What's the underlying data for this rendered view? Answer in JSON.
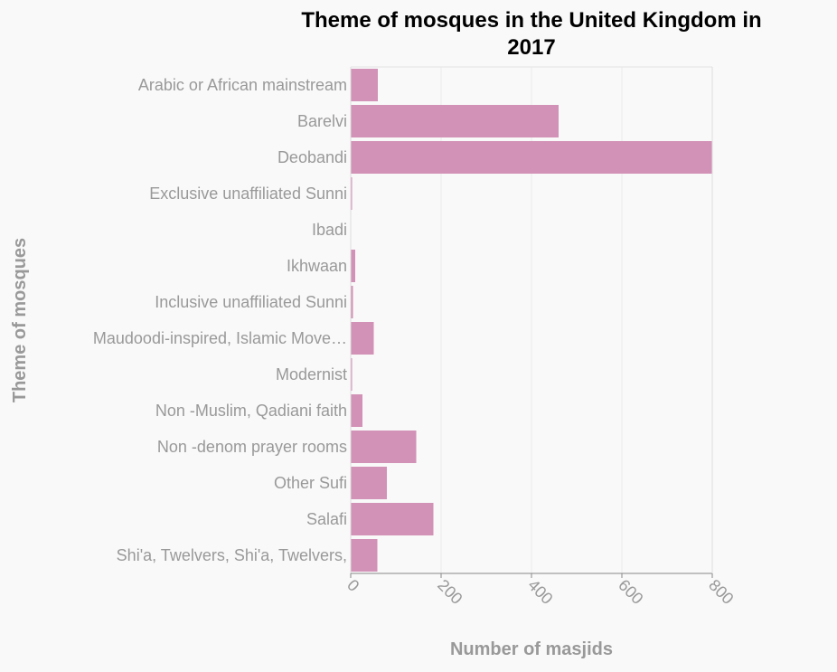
{
  "chart_data": {
    "type": "bar",
    "orientation": "horizontal",
    "title": "Theme of mosques in the United Kingdom in 2017",
    "xlabel": "Number of masjids",
    "ylabel": "Theme of mosques",
    "xlim": [
      0,
      800
    ],
    "xticks": [
      "0",
      "200",
      "400",
      "600",
      "800"
    ],
    "grid": "vertical",
    "legend": "none",
    "bar_color": "#d291b6",
    "categories": [
      "Arabic or African mainstream",
      "Barelvi",
      "Deobandi",
      "Exclusive unaffiliated Sunni",
      "Ibadi",
      "Ikhwaan",
      "Inclusive unaffiliated Sunni",
      "Maudoodi-inspired, Islamic Move…",
      "Modernist",
      "Non -Muslim, Qadiani faith",
      "Non -denom prayer rooms",
      "Other Sufi",
      "Salafi",
      "Shi'a, Twelvers, Shi'a, Twelvers,"
    ],
    "values": [
      60,
      460,
      800,
      3,
      1,
      10,
      5,
      51,
      3,
      26,
      145,
      80,
      183,
      59
    ]
  }
}
